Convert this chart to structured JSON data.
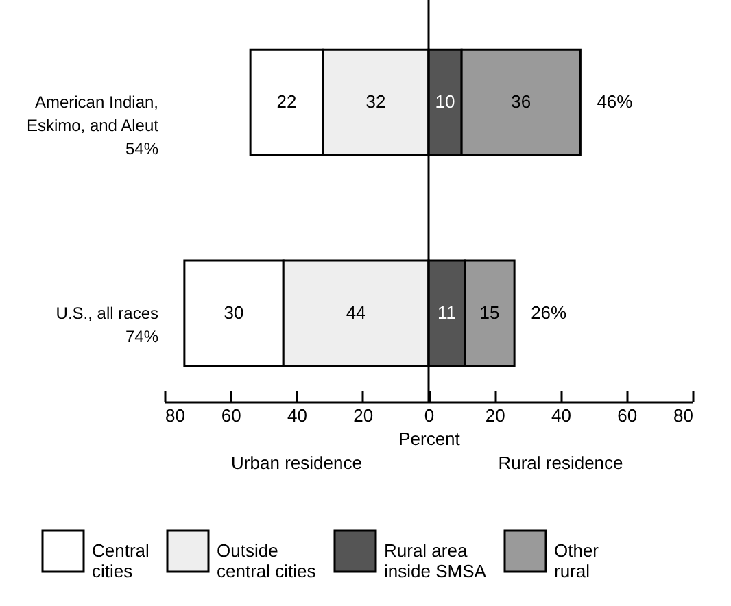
{
  "chart_data": {
    "type": "bar",
    "orientation": "horizontal",
    "categories": [
      "American Indian,\nEskimo, and Aleut\n54%",
      "U.S., all races\n74%"
    ],
    "series": [
      {
        "name": "Central\ncities",
        "color": "#ffffff",
        "base": [
          -54,
          -74
        ],
        "values": [
          22,
          30
        ],
        "value_labels": [
          "22",
          "30"
        ]
      },
      {
        "name": "Outside\ncentral cities",
        "color": "#eeeeee",
        "base": [
          -32,
          -44
        ],
        "values": [
          32,
          44
        ],
        "value_labels": [
          "32",
          "44"
        ]
      },
      {
        "name": "Rural area\ninside SMSA",
        "color": "#555555",
        "base": [
          0,
          0
        ],
        "values": [
          10,
          11
        ],
        "value_labels": [
          "10",
          "11"
        ]
      },
      {
        "name": "Other\nrural",
        "color": "#9a9a9a",
        "base": [
          10,
          11
        ],
        "values": [
          36,
          15
        ],
        "value_labels": [
          "36",
          "15"
        ]
      }
    ],
    "xlabel": "Percent",
    "xlim": [
      -80,
      80
    ],
    "xticks": [
      {
        "value": -80,
        "label": "80"
      },
      {
        "value": -60,
        "label": "60"
      },
      {
        "value": -40,
        "label": "40"
      },
      {
        "value": -20,
        "label": "20"
      },
      0,
      20,
      40,
      60,
      80
    ],
    "ref_lines": [
      {
        "axis": "x",
        "value": 0,
        "color": "#000000"
      }
    ],
    "annotations": [
      {
        "text": "46%",
        "x": 46,
        "y": "American Indian,\nEskimo, and Aleut\n54%"
      },
      {
        "text": "26%",
        "x": 26,
        "y": "U.S., all races\n74%"
      },
      "Urban residence",
      "Rural residence"
    ],
    "grid": false,
    "legend": "bottom"
  }
}
